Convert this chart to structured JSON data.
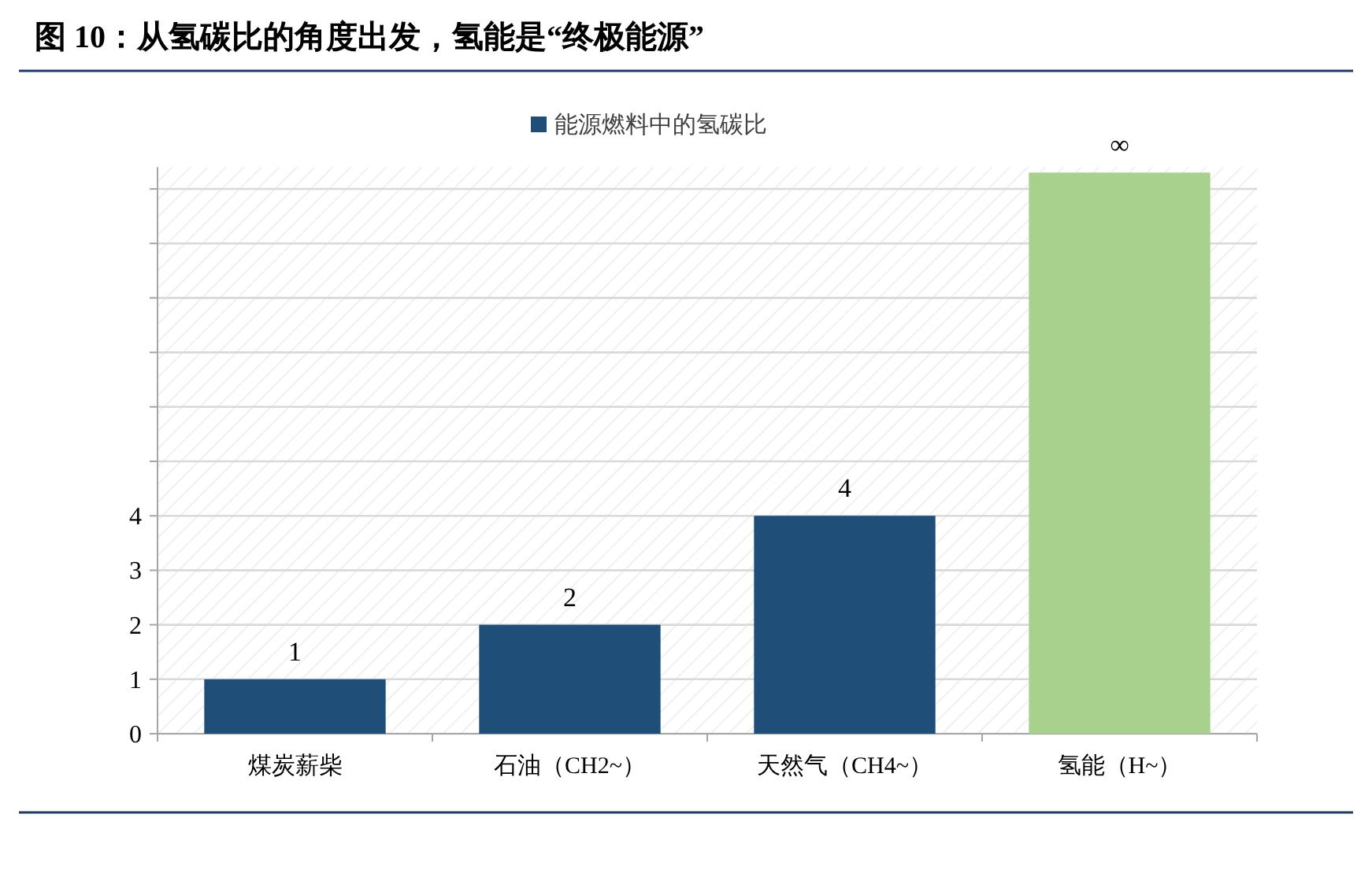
{
  "chart_data": {
    "type": "bar",
    "title": "图 10：从氢碳比的角度出发，氢能是“终极能源”",
    "categories": [
      "煤炭薪柴",
      "石油（CH2~）",
      "天然气（CH4~）",
      "氢能（H~）"
    ],
    "series": [
      {
        "name": "能源燃料中的氢碳比",
        "color": "#1f4e79",
        "colors": [
          "#1f4e79",
          "#1f4e79",
          "#1f4e79",
          "#a9d18e"
        ],
        "values": [
          1,
          2,
          4,
          10.3
        ],
        "value_labels": [
          "1",
          "2",
          "4",
          "∞"
        ]
      }
    ],
    "ylim": [
      0,
      10.4
    ],
    "yticks": [
      0,
      1,
      2,
      3,
      4,
      {
        "value": 5,
        "label": null
      },
      {
        "value": 6,
        "label": null
      },
      {
        "value": 7,
        "label": null
      },
      {
        "value": 8,
        "label": null
      },
      {
        "value": 9,
        "label": null
      },
      {
        "value": 10,
        "label": null
      }
    ],
    "grid": "y",
    "legend": "top"
  }
}
